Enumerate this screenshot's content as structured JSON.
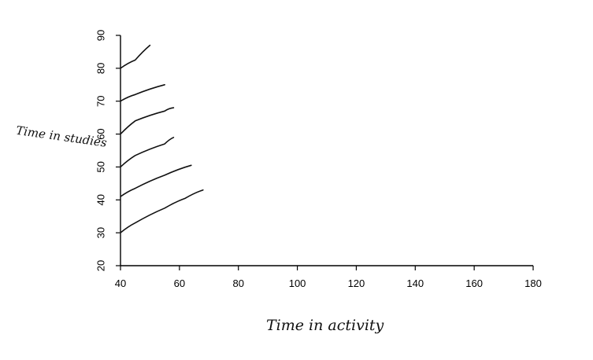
{
  "chart_data": {
    "type": "line",
    "xlabel": "Time in activity",
    "ylabel": "Time in studies",
    "xlim": [
      40,
      180
    ],
    "ylim": [
      20,
      90
    ],
    "x_ticks": [
      40,
      60,
      80,
      100,
      120,
      140,
      160,
      180
    ],
    "y_ticks": [
      20,
      30,
      40,
      50,
      60,
      70,
      80,
      90
    ],
    "grid": false,
    "series": [
      {
        "x": [
          40,
          45,
          50
        ],
        "y": [
          80,
          82.5,
          87
        ]
      },
      {
        "x": [
          40,
          45,
          55
        ],
        "y": [
          70,
          72,
          75
        ]
      },
      {
        "x": [
          40,
          45,
          55,
          58
        ],
        "y": [
          60,
          64,
          67,
          68
        ]
      },
      {
        "x": [
          40,
          45,
          55,
          58
        ],
        "y": [
          50,
          53.5,
          57,
          59
        ]
      },
      {
        "x": [
          40,
          45,
          55,
          64
        ],
        "y": [
          41,
          43.5,
          47.5,
          50.5
        ]
      },
      {
        "x": [
          40,
          45,
          55,
          62,
          68
        ],
        "y": [
          30,
          33,
          37.5,
          40.5,
          43
        ]
      }
    ]
  }
}
